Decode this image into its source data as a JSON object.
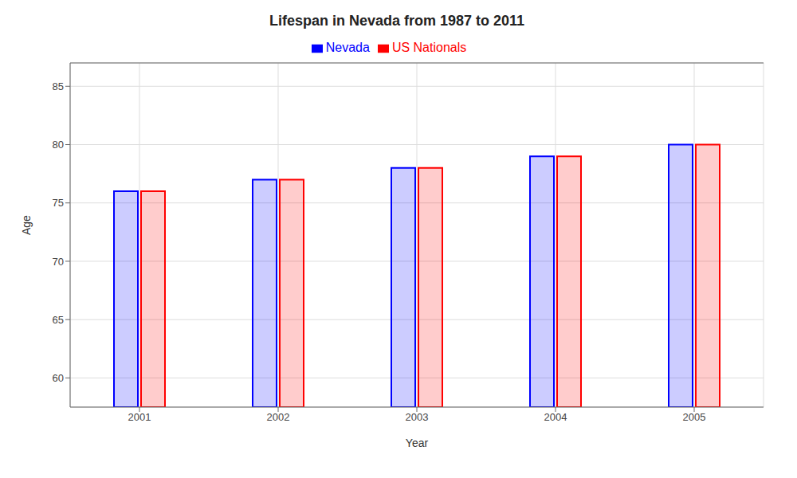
{
  "chart_data": {
    "type": "bar",
    "title": "Lifespan in Nevada from 1987 to 2011",
    "x_label": "Year",
    "y_label": "Age",
    "categories": [
      "2001",
      "2002",
      "2003",
      "2004",
      "2005"
    ],
    "series": [
      {
        "name": "Nevada",
        "color": "#0000ff",
        "values": [
          76,
          77,
          78,
          79,
          80
        ]
      },
      {
        "name": "US Nationals",
        "color": "#ff0000",
        "values": [
          76,
          77,
          78,
          79,
          80
        ]
      }
    ],
    "ylim": [
      57.5,
      87
    ],
    "yticks": [
      60,
      65,
      70,
      75,
      80,
      85
    ],
    "grid": true,
    "legend": "top"
  }
}
